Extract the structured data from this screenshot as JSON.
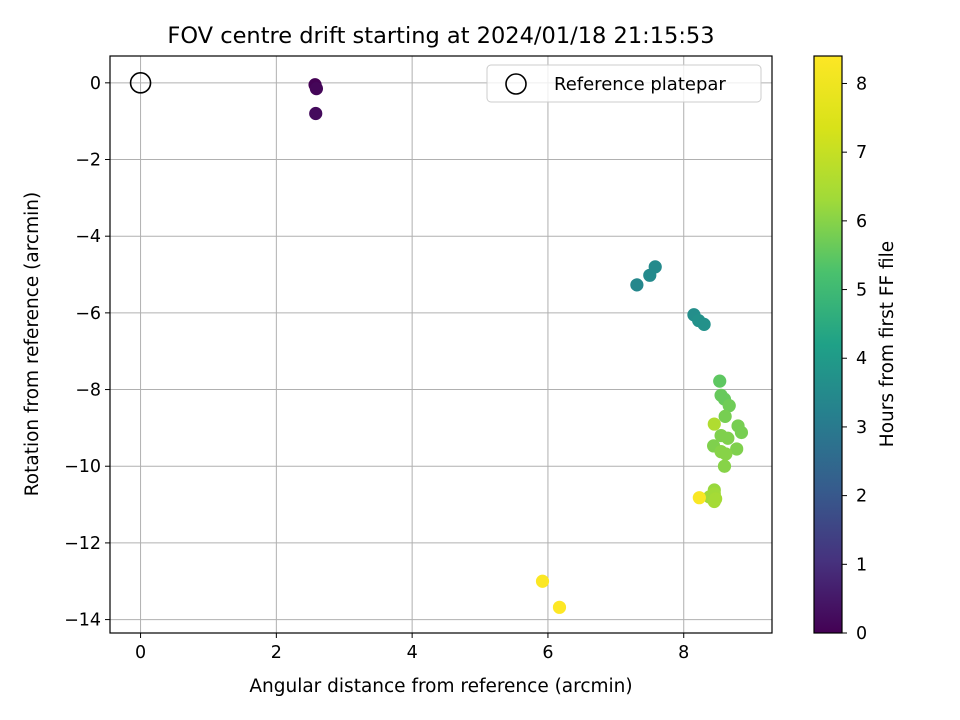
{
  "chart_data": {
    "type": "scatter",
    "title": "FOV centre drift starting at 2024/01/18 21:15:53",
    "xlabel": "Angular distance from reference (arcmin)",
    "ylabel": "Rotation from reference (arcmin)",
    "xlim": [
      -0.45,
      9.3
    ],
    "ylim": [
      -14.35,
      0.7
    ],
    "xticks": [
      0,
      2,
      4,
      6,
      8
    ],
    "yticks": [
      0,
      -2,
      -4,
      -6,
      -8,
      -10,
      -12,
      -14
    ],
    "grid": true,
    "legend": {
      "placement": "top-right",
      "entries": [
        "Reference platepar"
      ]
    },
    "reference_point": {
      "x": 0,
      "y": 0,
      "label": "Reference platepar"
    },
    "colorbar": {
      "label": "Hours from first FF file",
      "range": [
        0,
        8.4
      ],
      "ticks": [
        0,
        1,
        2,
        3,
        4,
        5,
        6,
        7,
        8
      ],
      "colormap": "viridis"
    },
    "points": [
      {
        "x": 2.57,
        "y": -0.05,
        "c": 0.0
      },
      {
        "x": 2.59,
        "y": -0.15,
        "c": 0.1
      },
      {
        "x": 2.58,
        "y": -0.8,
        "c": 0.2
      },
      {
        "x": 7.31,
        "y": -5.27,
        "c": 3.4
      },
      {
        "x": 7.5,
        "y": -5.02,
        "c": 3.5
      },
      {
        "x": 7.58,
        "y": -4.8,
        "c": 3.5
      },
      {
        "x": 8.15,
        "y": -6.05,
        "c": 3.6
      },
      {
        "x": 8.22,
        "y": -6.2,
        "c": 3.7
      },
      {
        "x": 8.3,
        "y": -6.3,
        "c": 3.7
      },
      {
        "x": 8.53,
        "y": -7.78,
        "c": 5.5
      },
      {
        "x": 8.55,
        "y": -8.15,
        "c": 5.6
      },
      {
        "x": 8.6,
        "y": -8.25,
        "c": 5.6
      },
      {
        "x": 8.67,
        "y": -8.42,
        "c": 5.7
      },
      {
        "x": 8.61,
        "y": -8.7,
        "c": 5.8
      },
      {
        "x": 8.45,
        "y": -8.9,
        "c": 6.6
      },
      {
        "x": 8.8,
        "y": -8.95,
        "c": 5.8
      },
      {
        "x": 8.85,
        "y": -9.12,
        "c": 5.8
      },
      {
        "x": 8.55,
        "y": -9.2,
        "c": 5.9
      },
      {
        "x": 8.65,
        "y": -9.27,
        "c": 5.9
      },
      {
        "x": 8.44,
        "y": -9.47,
        "c": 5.9
      },
      {
        "x": 8.78,
        "y": -9.55,
        "c": 5.9
      },
      {
        "x": 8.55,
        "y": -9.62,
        "c": 6.0
      },
      {
        "x": 8.62,
        "y": -9.68,
        "c": 6.0
      },
      {
        "x": 8.6,
        "y": -10.0,
        "c": 6.0
      },
      {
        "x": 8.45,
        "y": -10.62,
        "c": 6.2
      },
      {
        "x": 8.45,
        "y": -10.72,
        "c": 6.3
      },
      {
        "x": 8.38,
        "y": -10.8,
        "c": 6.3
      },
      {
        "x": 8.47,
        "y": -10.85,
        "c": 6.4
      },
      {
        "x": 8.45,
        "y": -10.92,
        "c": 6.4
      },
      {
        "x": 8.23,
        "y": -10.82,
        "c": 8.3
      },
      {
        "x": 5.92,
        "y": -13.0,
        "c": 8.35
      },
      {
        "x": 6.17,
        "y": -13.68,
        "c": 8.4
      }
    ]
  }
}
